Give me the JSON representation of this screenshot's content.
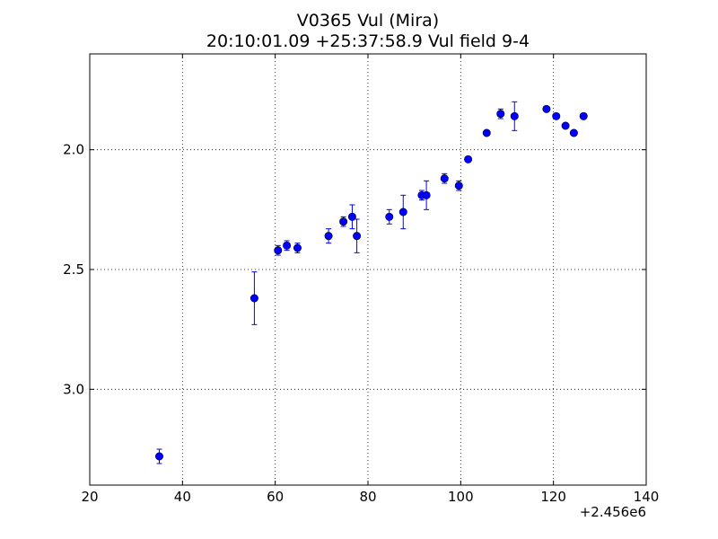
{
  "chart_data": {
    "type": "scatter",
    "title": "V0365 Vul (Mira)",
    "subtitle": "20:10:01.09 +25:37:58.9 Vul field 9-4",
    "xlabel": "",
    "ylabel": "",
    "x_offset_label": "+2.456e6",
    "xlim": [
      20,
      140
    ],
    "ylim": [
      3.4,
      1.6
    ],
    "y_inverted": true,
    "x_ticks": [
      20,
      40,
      60,
      80,
      100,
      120,
      140
    ],
    "y_ticks": [
      2.0,
      2.5,
      3.0
    ],
    "grid": true,
    "marker_color": "#0000ff",
    "series": [
      {
        "points": [
          {
            "x": 35.0,
            "y": 3.28,
            "err": 0.03
          },
          {
            "x": 55.5,
            "y": 2.62,
            "err": 0.11
          },
          {
            "x": 60.6,
            "y": 2.42,
            "err": 0.02
          },
          {
            "x": 62.5,
            "y": 2.4,
            "err": 0.02
          },
          {
            "x": 64.8,
            "y": 2.41,
            "err": 0.02
          },
          {
            "x": 71.5,
            "y": 2.36,
            "err": 0.03
          },
          {
            "x": 74.7,
            "y": 2.3,
            "err": 0.02
          },
          {
            "x": 76.6,
            "y": 2.28,
            "err": 0.05
          },
          {
            "x": 77.6,
            "y": 2.36,
            "err": 0.07
          },
          {
            "x": 84.6,
            "y": 2.28,
            "err": 0.03
          },
          {
            "x": 87.6,
            "y": 2.26,
            "err": 0.07
          },
          {
            "x": 91.6,
            "y": 2.19,
            "err": 0.02
          },
          {
            "x": 92.6,
            "y": 2.19,
            "err": 0.06
          },
          {
            "x": 96.5,
            "y": 2.12,
            "err": 0.02
          },
          {
            "x": 99.6,
            "y": 2.15,
            "err": 0.02
          },
          {
            "x": 101.6,
            "y": 2.04,
            "err": 0.01
          },
          {
            "x": 105.6,
            "y": 1.93,
            "err": 0.01
          },
          {
            "x": 108.6,
            "y": 1.85,
            "err": 0.02
          },
          {
            "x": 111.6,
            "y": 1.86,
            "err": 0.06
          },
          {
            "x": 118.5,
            "y": 1.83,
            "err": 0.01
          },
          {
            "x": 120.6,
            "y": 1.86,
            "err": 0.01
          },
          {
            "x": 122.6,
            "y": 1.9,
            "err": 0.01
          },
          {
            "x": 124.4,
            "y": 1.93,
            "err": 0.01
          },
          {
            "x": 126.5,
            "y": 1.86,
            "err": 0.01
          }
        ]
      }
    ]
  }
}
